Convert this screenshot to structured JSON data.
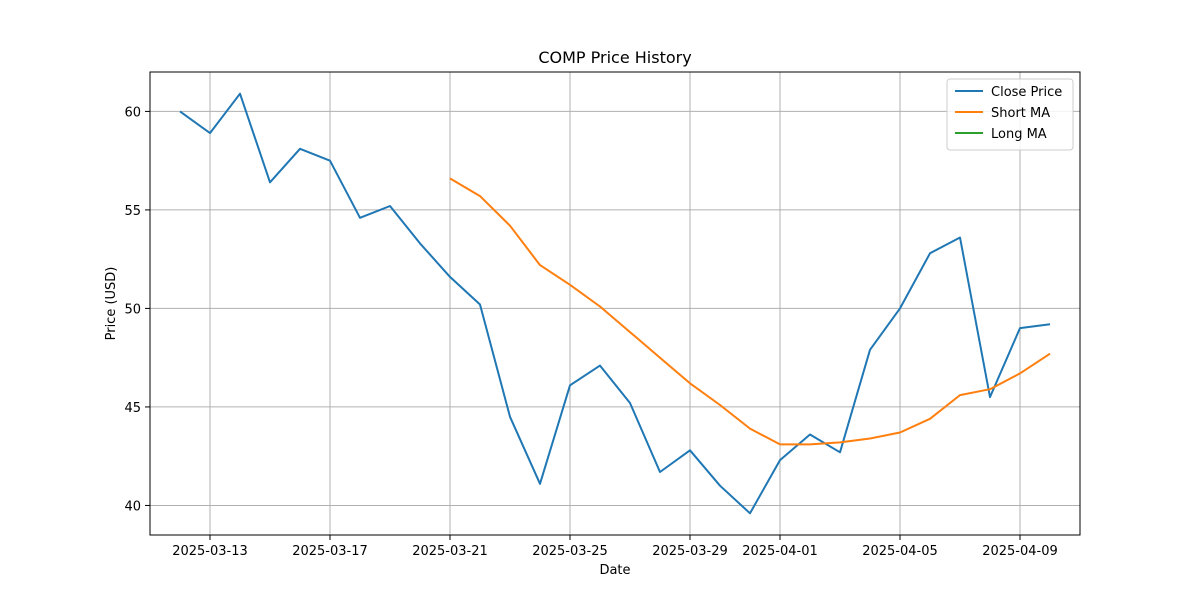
{
  "chart_data": {
    "type": "line",
    "title": "COMP Price History",
    "xlabel": "Date",
    "ylabel": "Price (USD)",
    "grid": true,
    "legend_position": "top-right",
    "x_range": [
      "2025-03-11",
      "2025-04-11"
    ],
    "ylim": [
      38.5,
      62
    ],
    "x_ticks": [
      "2025-03-13",
      "2025-03-17",
      "2025-03-21",
      "2025-03-25",
      "2025-03-29",
      "2025-04-01",
      "2025-04-05",
      "2025-04-09"
    ],
    "y_ticks": [
      40,
      45,
      50,
      55,
      60
    ],
    "series": [
      {
        "name": "Close Price",
        "color": "#1f77b4",
        "points": [
          [
            "2025-03-12",
            60.0
          ],
          [
            "2025-03-13",
            58.9
          ],
          [
            "2025-03-14",
            60.9
          ],
          [
            "2025-03-15",
            56.4
          ],
          [
            "2025-03-16",
            58.1
          ],
          [
            "2025-03-17",
            57.5
          ],
          [
            "2025-03-18",
            54.6
          ],
          [
            "2025-03-19",
            55.2
          ],
          [
            "2025-03-20",
            53.3
          ],
          [
            "2025-03-21",
            51.6
          ],
          [
            "2025-03-22",
            50.2
          ],
          [
            "2025-03-23",
            44.5
          ],
          [
            "2025-03-24",
            41.1
          ],
          [
            "2025-03-25",
            46.1
          ],
          [
            "2025-03-26",
            47.1
          ],
          [
            "2025-03-27",
            45.2
          ],
          [
            "2025-03-28",
            41.7
          ],
          [
            "2025-03-29",
            42.8
          ],
          [
            "2025-03-30",
            41.0
          ],
          [
            "2025-03-31",
            39.6
          ],
          [
            "2025-04-01",
            42.3
          ],
          [
            "2025-04-02",
            43.6
          ],
          [
            "2025-04-03",
            42.7
          ],
          [
            "2025-04-04",
            47.9
          ],
          [
            "2025-04-05",
            50.0
          ],
          [
            "2025-04-06",
            52.8
          ],
          [
            "2025-04-07",
            53.6
          ],
          [
            "2025-04-08",
            45.5
          ],
          [
            "2025-04-09",
            49.0
          ],
          [
            "2025-04-10",
            49.2
          ]
        ]
      },
      {
        "name": "Short MA",
        "color": "#ff7f0e",
        "points": [
          [
            "2025-03-21",
            56.6
          ],
          [
            "2025-03-22",
            55.7
          ],
          [
            "2025-03-23",
            54.2
          ],
          [
            "2025-03-24",
            52.2
          ],
          [
            "2025-03-25",
            51.2
          ],
          [
            "2025-03-26",
            50.1
          ],
          [
            "2025-03-27",
            48.8
          ],
          [
            "2025-03-28",
            47.5
          ],
          [
            "2025-03-29",
            46.2
          ],
          [
            "2025-03-30",
            45.1
          ],
          [
            "2025-03-31",
            43.9
          ],
          [
            "2025-04-01",
            43.1
          ],
          [
            "2025-04-02",
            43.1
          ],
          [
            "2025-04-03",
            43.2
          ],
          [
            "2025-04-04",
            43.4
          ],
          [
            "2025-04-05",
            43.7
          ],
          [
            "2025-04-06",
            44.4
          ],
          [
            "2025-04-07",
            45.6
          ],
          [
            "2025-04-08",
            45.9
          ],
          [
            "2025-04-09",
            46.7
          ],
          [
            "2025-04-10",
            47.7
          ]
        ]
      },
      {
        "name": "Long MA",
        "color": "#2ca02c",
        "points": []
      }
    ]
  }
}
